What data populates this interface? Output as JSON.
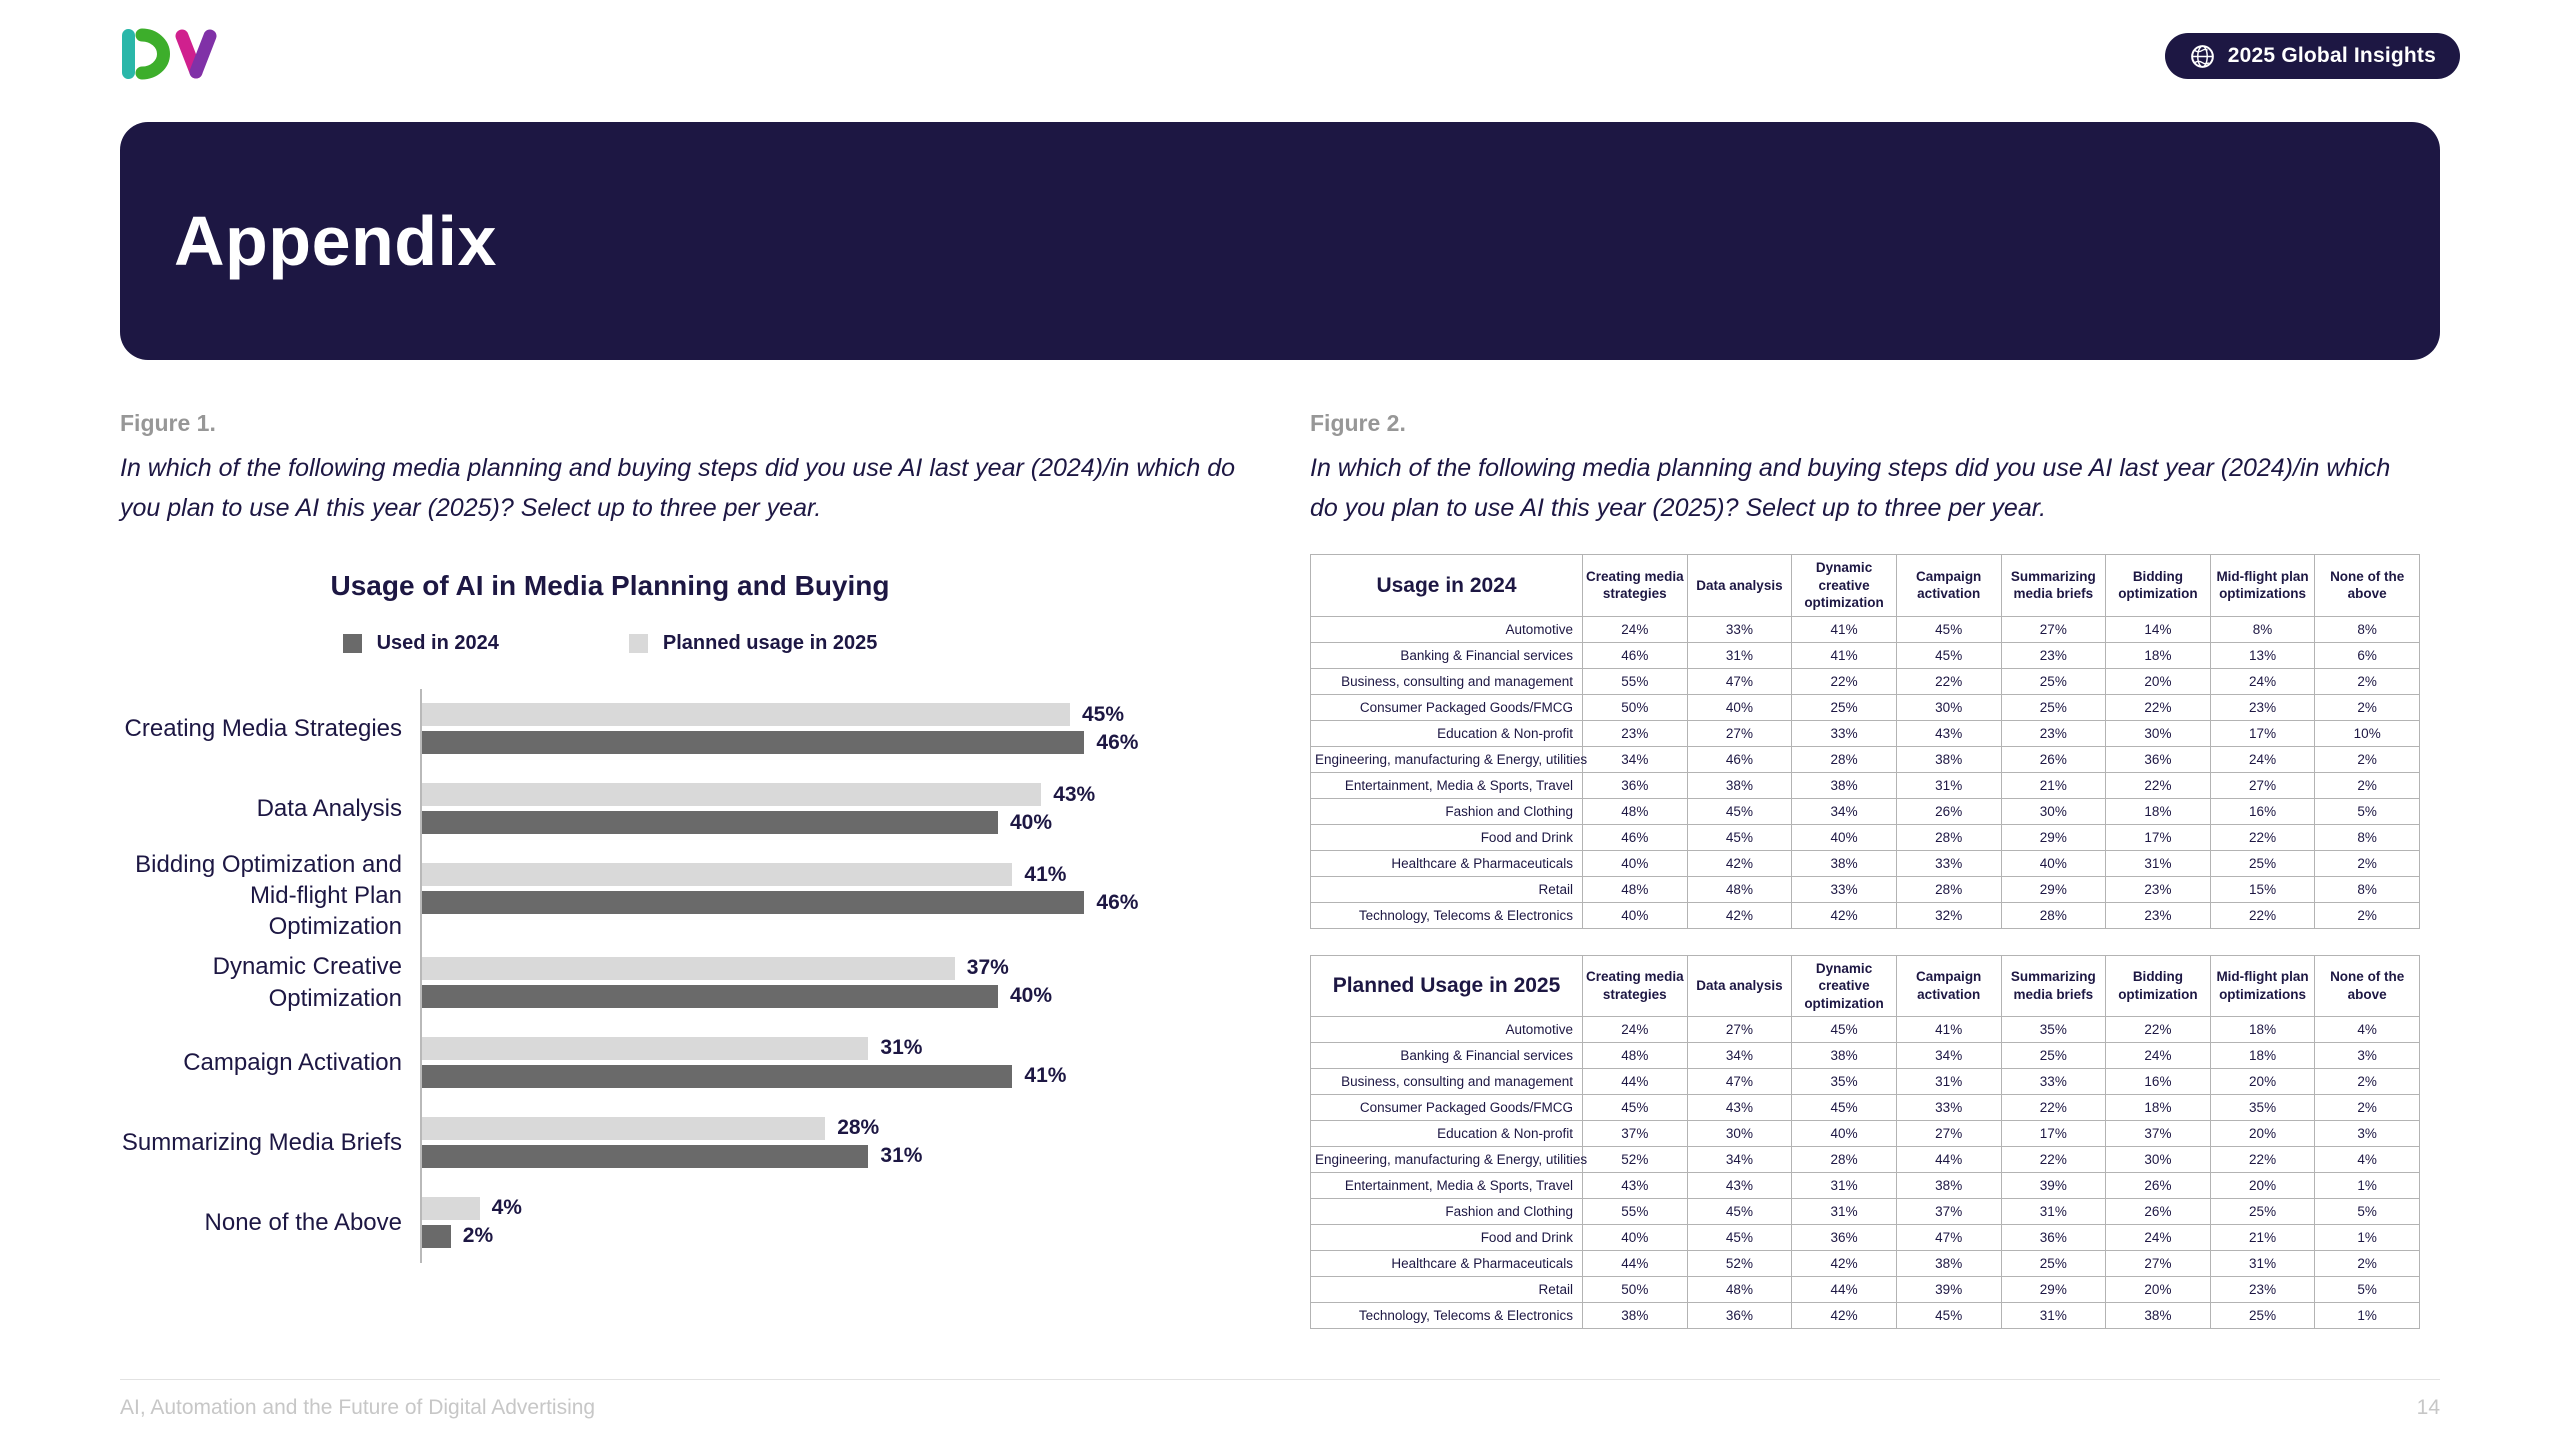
{
  "page": {
    "logo": "DV",
    "badge_label": "2025 Global Insights",
    "banner_title": "Appendix",
    "footer_left": "AI, Automation and the Future of Digital Advertising",
    "page_number": "14"
  },
  "figure1": {
    "label": "Figure 1.",
    "caption": "In which of the following media planning and buying steps did you use AI last year (2024)/in which do you plan to use AI this year (2025)? Select up to three per year."
  },
  "figure2": {
    "label": "Figure 2.",
    "caption": "In which of the following media planning and buying steps did you use AI last year (2024)/in which do you plan to use AI this year (2025)? Select up to three per year."
  },
  "chart_data": {
    "type": "bar",
    "orientation": "horizontal",
    "title": "Usage of AI in Media Planning and Buying",
    "xlim": [
      0,
      50
    ],
    "value_suffix": "%",
    "grid": false,
    "legend_position": "top",
    "legend": [
      {
        "name": "Used in 2024",
        "color": "#6a6a6a"
      },
      {
        "name": "Planned usage in 2025",
        "color": "#d9d9d9"
      }
    ],
    "categories": [
      "Creating Media Strategies",
      "Data Analysis",
      "Bidding Optimization and\nMid-flight Plan Optimization",
      "Dynamic Creative Optimization",
      "Campaign Activation",
      "Summarizing Media Briefs",
      "None of the Above"
    ],
    "series": [
      {
        "name": "Planned usage in 2025",
        "color": "#d9d9d9",
        "position": "top",
        "values": [
          45,
          43,
          41,
          37,
          31,
          28,
          4
        ]
      },
      {
        "name": "Used in 2024",
        "color": "#6a6a6a",
        "position": "bottom",
        "values": [
          46,
          40,
          46,
          40,
          41,
          31,
          2
        ]
      }
    ]
  },
  "tables": [
    {
      "title": "Usage in 2024",
      "columns": [
        "Creating media strategies",
        "Data analysis",
        "Dynamic creative optimization",
        "Campaign activation",
        "Summarizing media briefs",
        "Bidding optimization",
        "Mid-flight plan optimizations",
        "None of the above"
      ],
      "rows": [
        {
          "label": "Automotive",
          "values": [
            "24%",
            "33%",
            "41%",
            "45%",
            "27%",
            "14%",
            "8%",
            "8%"
          ]
        },
        {
          "label": "Banking & Financial services",
          "values": [
            "46%",
            "31%",
            "41%",
            "45%",
            "23%",
            "18%",
            "13%",
            "6%"
          ]
        },
        {
          "label": "Business, consulting and management",
          "values": [
            "55%",
            "47%",
            "22%",
            "22%",
            "25%",
            "20%",
            "24%",
            "2%"
          ]
        },
        {
          "label": "Consumer Packaged Goods/FMCG",
          "values": [
            "50%",
            "40%",
            "25%",
            "30%",
            "25%",
            "22%",
            "23%",
            "2%"
          ]
        },
        {
          "label": "Education & Non-profit",
          "values": [
            "23%",
            "27%",
            "33%",
            "43%",
            "23%",
            "30%",
            "17%",
            "10%"
          ]
        },
        {
          "label": "Engineering, manufacturing & Energy, utilities",
          "values": [
            "34%",
            "46%",
            "28%",
            "38%",
            "26%",
            "36%",
            "24%",
            "2%"
          ]
        },
        {
          "label": "Entertainment, Media & Sports, Travel",
          "values": [
            "36%",
            "38%",
            "38%",
            "31%",
            "21%",
            "22%",
            "27%",
            "2%"
          ]
        },
        {
          "label": "Fashion and Clothing",
          "values": [
            "48%",
            "45%",
            "34%",
            "26%",
            "30%",
            "18%",
            "16%",
            "5%"
          ]
        },
        {
          "label": "Food and Drink",
          "values": [
            "46%",
            "45%",
            "40%",
            "28%",
            "29%",
            "17%",
            "22%",
            "8%"
          ]
        },
        {
          "label": "Healthcare & Pharmaceuticals",
          "values": [
            "40%",
            "42%",
            "38%",
            "33%",
            "40%",
            "31%",
            "25%",
            "2%"
          ]
        },
        {
          "label": "Retail",
          "values": [
            "48%",
            "48%",
            "33%",
            "28%",
            "29%",
            "23%",
            "15%",
            "8%"
          ]
        },
        {
          "label": "Technology, Telecoms & Electronics",
          "values": [
            "40%",
            "42%",
            "42%",
            "32%",
            "28%",
            "23%",
            "22%",
            "2%"
          ]
        }
      ]
    },
    {
      "title": "Planned Usage in 2025",
      "columns": [
        "Creating media strategies",
        "Data analysis",
        "Dynamic creative optimization",
        "Campaign activation",
        "Summarizing media briefs",
        "Bidding optimization",
        "Mid-flight plan optimizations",
        "None of the above"
      ],
      "rows": [
        {
          "label": "Automotive",
          "values": [
            "24%",
            "27%",
            "45%",
            "41%",
            "35%",
            "22%",
            "18%",
            "4%"
          ]
        },
        {
          "label": "Banking & Financial services",
          "values": [
            "48%",
            "34%",
            "38%",
            "34%",
            "25%",
            "24%",
            "18%",
            "3%"
          ]
        },
        {
          "label": "Business, consulting and management",
          "values": [
            "44%",
            "47%",
            "35%",
            "31%",
            "33%",
            "16%",
            "20%",
            "2%"
          ]
        },
        {
          "label": "Consumer Packaged Goods/FMCG",
          "values": [
            "45%",
            "43%",
            "45%",
            "33%",
            "22%",
            "18%",
            "35%",
            "2%"
          ]
        },
        {
          "label": "Education & Non-profit",
          "values": [
            "37%",
            "30%",
            "40%",
            "27%",
            "17%",
            "37%",
            "20%",
            "3%"
          ]
        },
        {
          "label": "Engineering, manufacturing & Energy, utilities",
          "values": [
            "52%",
            "34%",
            "28%",
            "44%",
            "22%",
            "30%",
            "22%",
            "4%"
          ]
        },
        {
          "label": "Entertainment, Media & Sports, Travel",
          "values": [
            "43%",
            "43%",
            "31%",
            "38%",
            "39%",
            "26%",
            "20%",
            "1%"
          ]
        },
        {
          "label": "Fashion and Clothing",
          "values": [
            "55%",
            "45%",
            "31%",
            "37%",
            "31%",
            "26%",
            "25%",
            "5%"
          ]
        },
        {
          "label": "Food and Drink",
          "values": [
            "40%",
            "45%",
            "36%",
            "47%",
            "36%",
            "24%",
            "21%",
            "1%"
          ]
        },
        {
          "label": "Healthcare & Pharmaceuticals",
          "values": [
            "44%",
            "52%",
            "42%",
            "38%",
            "25%",
            "27%",
            "31%",
            "2%"
          ]
        },
        {
          "label": "Retail",
          "values": [
            "50%",
            "48%",
            "44%",
            "39%",
            "29%",
            "20%",
            "23%",
            "5%"
          ]
        },
        {
          "label": "Technology, Telecoms & Electronics",
          "values": [
            "38%",
            "36%",
            "42%",
            "45%",
            "31%",
            "38%",
            "25%",
            "1%"
          ]
        }
      ]
    }
  ],
  "colors": {
    "navy": "#1d1743",
    "bar_dark": "#6a6a6a",
    "bar_light": "#d9d9d9",
    "logo_teal": "#2ab7a9",
    "logo_green": "#3dae2b",
    "logo_magenta": "#d0208e",
    "logo_purple": "#8031a7"
  }
}
